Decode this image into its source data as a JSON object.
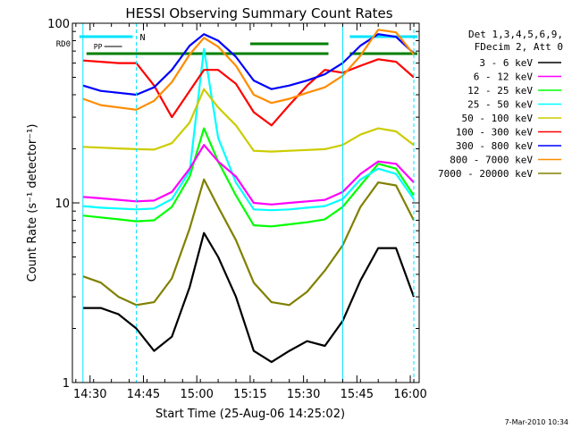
{
  "chart_data": {
    "type": "line",
    "title": "HESSI Observing Summary Count Rates",
    "xlabel": "Start Time (25-Aug-06 14:25:02)",
    "ylabel": "Count Rate (s⁻¹ detector⁻¹)",
    "yscale": "log",
    "ylim": [
      1,
      100
    ],
    "xlim": [
      "14:25:02",
      "16:02:30"
    ],
    "x_ticks": [
      "14:30",
      "14:45",
      "15:00",
      "15:15",
      "15:30",
      "15:45",
      "16:00"
    ],
    "y_ticks": [
      "1",
      "10",
      "100"
    ],
    "grid": false,
    "legend_position": "right",
    "legend_header": [
      "Det 1,3,4,5,6,9,",
      "FDecim 2, Att 0"
    ],
    "timestamp": "7-Mar-2010 10:34",
    "flags": [
      {
        "label": "N",
        "color": "#00e5ff"
      },
      {
        "label": "RD0",
        "color": "#008000"
      },
      {
        "label": "PP",
        "color": "#000000"
      }
    ],
    "x": [
      "14:28",
      "14:33",
      "14:38",
      "14:43",
      "14:48",
      "14:53",
      "14:58",
      "15:02",
      "15:06",
      "15:11",
      "15:16",
      "15:21",
      "15:26",
      "15:31",
      "15:36",
      "15:41",
      "15:46",
      "15:51",
      "15:56",
      "16:01"
    ],
    "series": [
      {
        "name": "3 - 6 keV",
        "color": "#000000",
        "values": [
          2.6,
          2.6,
          2.4,
          2.0,
          1.5,
          1.8,
          3.4,
          6.8,
          5.0,
          3.0,
          1.5,
          1.3,
          1.5,
          1.7,
          1.6,
          2.2,
          3.7,
          5.6,
          5.6,
          3.0
        ]
      },
      {
        "name": "6 - 12 keV",
        "color": "#ff00ff",
        "values": [
          10.8,
          10.6,
          10.4,
          10.2,
          10.3,
          11.5,
          15.5,
          21,
          17,
          14,
          10,
          9.8,
          10,
          10.2,
          10.4,
          11.5,
          14.5,
          17,
          16.5,
          13
        ]
      },
      {
        "name": "12 - 25 keV",
        "color": "#00ff00",
        "values": [
          8.5,
          8.3,
          8.1,
          7.9,
          8.0,
          9.5,
          14,
          26,
          17,
          11,
          7.5,
          7.4,
          7.6,
          7.8,
          8.1,
          9.5,
          12.5,
          16.5,
          15.5,
          11
        ]
      },
      {
        "name": "25 - 50 keV",
        "color": "#00ffff",
        "values": [
          9.6,
          9.4,
          9.3,
          9.2,
          9.3,
          10.5,
          15,
          72,
          23,
          13,
          9.2,
          9.1,
          9.2,
          9.4,
          9.6,
          10.5,
          13.5,
          15.5,
          14.5,
          10.5
        ]
      },
      {
        "name": "50 - 100 keV",
        "color": "#cccc00",
        "values": [
          20.5,
          20.3,
          20.1,
          19.9,
          19.8,
          21.5,
          28,
          43,
          34,
          27,
          19.5,
          19.3,
          19.5,
          19.7,
          19.9,
          21,
          24,
          26,
          25,
          21
        ]
      },
      {
        "name": "100 - 300 keV",
        "color": "#ff0000",
        "values": [
          62,
          61,
          60,
          60,
          45,
          30,
          42,
          55,
          55,
          46,
          32,
          27,
          35,
          45,
          55,
          53,
          58,
          63,
          61,
          50
        ]
      },
      {
        "name": "300 - 800 keV",
        "color": "#0000ff",
        "values": [
          45,
          42,
          41,
          40,
          44,
          55,
          75,
          87,
          80,
          65,
          48,
          43,
          45,
          48,
          52,
          60,
          75,
          87,
          84,
          68
        ]
      },
      {
        "name": "800 - 7000 keV",
        "color": "#ff8c00",
        "values": [
          38,
          35,
          34,
          33,
          37,
          47,
          67,
          83,
          74,
          58,
          40,
          36,
          38,
          41,
          44,
          51,
          66,
          92,
          89,
          67
        ]
      },
      {
        "name": "7000 - 20000 keV",
        "color": "#808000",
        "values": [
          3.9,
          3.6,
          3.0,
          2.7,
          2.8,
          3.8,
          7.2,
          13.5,
          9.5,
          6.2,
          3.6,
          2.8,
          2.7,
          3.2,
          4.2,
          5.8,
          9.5,
          13,
          12.5,
          8
        ]
      }
    ]
  }
}
